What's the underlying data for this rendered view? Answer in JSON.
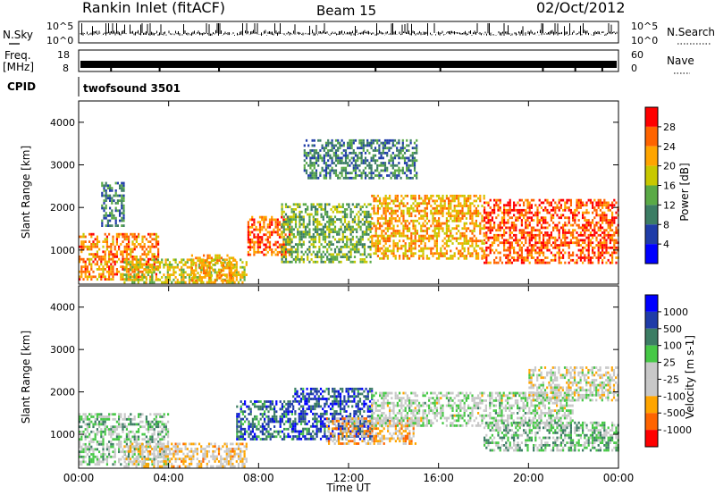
{
  "header": {
    "title": "Rankin Inlet (fitACF)",
    "beam": "Beam 15",
    "date": "02/Oct/2012"
  },
  "top_panels": {
    "nsky_label": "N.Sky",
    "nsearch_label": "N.Search",
    "nsky_ticks": [
      "10^5",
      "10^0"
    ],
    "nsearch_ticks": [
      "10^5",
      "10^0"
    ],
    "freq_label": "Freq.",
    "freq_unit": "[MHz]",
    "freq_ticks": [
      "18",
      "8"
    ],
    "nave_label": "Nave",
    "nave_ticks": [
      "60",
      "0"
    ],
    "cpid_label": "CPID",
    "cpid_value": "twofsound 3501"
  },
  "colors": {
    "power": [
      "#0000ff",
      "#1f3ca8",
      "#3c7d64",
      "#5aaa46",
      "#c8c800",
      "#ffa500",
      "#ff6400",
      "#ff0000"
    ],
    "velocity": [
      "#ff0000",
      "#ff6400",
      "#ffa500",
      "#c8c8c8",
      "#c8c8c8",
      "#46c846",
      "#3c7d64",
      "#1f3ca8",
      "#0000ff"
    ]
  },
  "chart_data": [
    {
      "type": "heatmap",
      "title": "",
      "xlabel": "Time UT",
      "ylabel": "Slant Range [km]",
      "xlim": [
        "00:00",
        "24:00"
      ],
      "ylim": [
        200,
        4500
      ],
      "x_ticks": [
        "00:00",
        "04:00",
        "08:00",
        "12:00",
        "16:00",
        "20:00",
        "00:00"
      ],
      "y_ticks": [
        "4000",
        "3000",
        "2000",
        "1000"
      ],
      "colorbar": {
        "label": "Power [dB]",
        "ticks": [
          "28",
          "24",
          "20",
          "16",
          "12",
          "8",
          "4"
        ],
        "range": [
          0,
          32
        ]
      },
      "regions": [
        {
          "t": [
            0.0,
            3.5
          ],
          "range": [
            300,
            1400
          ],
          "value": 24
        },
        {
          "t": [
            1.0,
            2.0
          ],
          "range": [
            1600,
            2600
          ],
          "value": 10
        },
        {
          "t": [
            2.0,
            7.5
          ],
          "range": [
            250,
            800
          ],
          "value": 18
        },
        {
          "t": [
            5.0,
            7.0
          ],
          "range": [
            300,
            900
          ],
          "value": 22
        },
        {
          "t": [
            7.5,
            9.5
          ],
          "range": [
            900,
            1800
          ],
          "value": 26
        },
        {
          "t": [
            9.0,
            13.0
          ],
          "range": [
            700,
            2100
          ],
          "value": 14
        },
        {
          "t": [
            13.0,
            18.0
          ],
          "range": [
            800,
            2300
          ],
          "value": 22
        },
        {
          "t": [
            18.0,
            24.0
          ],
          "range": [
            700,
            2200
          ],
          "value": 27
        },
        {
          "t": [
            10.0,
            15.0
          ],
          "range": [
            2700,
            3600
          ],
          "value": 10
        }
      ]
    },
    {
      "type": "heatmap",
      "title": "",
      "xlabel": "Time UT",
      "ylabel": "Slant Range [km]",
      "xlim": [
        "00:00",
        "24:00"
      ],
      "ylim": [
        200,
        4500
      ],
      "x_ticks": [
        "00:00",
        "04:00",
        "08:00",
        "12:00",
        "16:00",
        "20:00",
        "00:00"
      ],
      "y_ticks": [
        "4000",
        "3000",
        "2000",
        "1000"
      ],
      "colorbar": {
        "label": "Velocity [m s-1]",
        "ticks": [
          "1000",
          "500",
          "100",
          "25",
          "-25",
          "-100",
          "-500",
          "-1000"
        ],
        "range": [
          -1250,
          1250
        ]
      },
      "regions": [
        {
          "t": [
            0.0,
            4.0
          ],
          "range": [
            300,
            1500
          ],
          "value": 150
        },
        {
          "t": [
            2.0,
            7.5
          ],
          "range": [
            250,
            800
          ],
          "value": -300
        },
        {
          "t": [
            7.0,
            9.5
          ],
          "range": [
            900,
            1800
          ],
          "value": 700
        },
        {
          "t": [
            9.5,
            13.0
          ],
          "range": [
            900,
            2100
          ],
          "value": 800
        },
        {
          "t": [
            11.0,
            15.0
          ],
          "range": [
            800,
            1400
          ],
          "value": -400
        },
        {
          "t": [
            13.0,
            22.0
          ],
          "range": [
            1200,
            2000
          ],
          "value": 0
        },
        {
          "t": [
            18.0,
            24.0
          ],
          "range": [
            600,
            1300
          ],
          "value": 250
        },
        {
          "t": [
            20.0,
            24.0
          ],
          "range": [
            1800,
            2600
          ],
          "value": -150
        }
      ]
    }
  ]
}
